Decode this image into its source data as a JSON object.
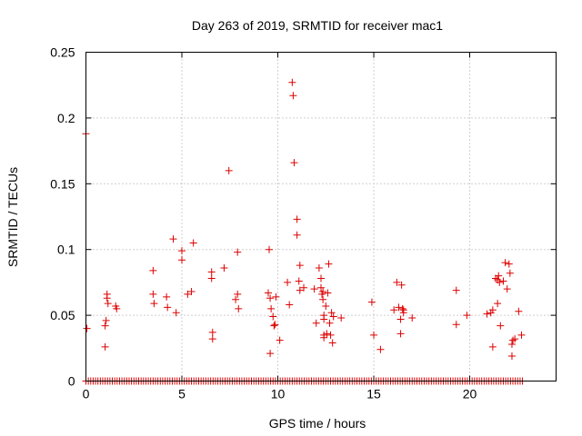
{
  "chart_data": {
    "type": "scatter",
    "title": "Day 263 of 2019, SRMTID for receiver mac1",
    "xlabel": "GPS time / hours",
    "ylabel": "SRMTID / TECUs",
    "xlim": [
      0,
      24.5
    ],
    "ylim": [
      0,
      0.25
    ],
    "x_ticks": [
      0,
      5,
      10,
      15,
      20
    ],
    "x_tick_labels": [
      "0",
      "5",
      "10",
      "15",
      "20"
    ],
    "y_ticks": [
      0,
      0.05,
      0.1,
      0.15,
      0.2,
      0.25
    ],
    "y_tick_labels": [
      "0",
      "0.05",
      "0.1",
      "0.15",
      "0.2",
      "0.25"
    ],
    "grid": true,
    "marker": "+",
    "color": "#dd0000",
    "series": [
      {
        "name": "SRMTID",
        "points": [
          [
            0.0,
            0.188
          ],
          [
            0.05,
            0.04
          ],
          [
            1.0,
            0.026
          ],
          [
            1.0,
            0.042
          ],
          [
            1.05,
            0.046
          ],
          [
            1.1,
            0.066
          ],
          [
            1.1,
            0.063
          ],
          [
            1.15,
            0.059
          ],
          [
            1.55,
            0.057
          ],
          [
            1.6,
            0.055
          ],
          [
            3.5,
            0.084
          ],
          [
            3.5,
            0.066
          ],
          [
            3.55,
            0.059
          ],
          [
            4.2,
            0.064
          ],
          [
            4.25,
            0.056
          ],
          [
            4.55,
            0.108
          ],
          [
            4.7,
            0.052
          ],
          [
            5.0,
            0.099
          ],
          [
            5.0,
            0.092
          ],
          [
            5.3,
            0.066
          ],
          [
            5.5,
            0.068
          ],
          [
            5.6,
            0.105
          ],
          [
            6.55,
            0.083
          ],
          [
            6.55,
            0.078
          ],
          [
            6.6,
            0.037
          ],
          [
            6.6,
            0.032
          ],
          [
            7.2,
            0.086
          ],
          [
            7.45,
            0.16
          ],
          [
            7.8,
            0.062
          ],
          [
            7.9,
            0.098
          ],
          [
            7.9,
            0.066
          ],
          [
            7.95,
            0.055
          ],
          [
            9.5,
            0.067
          ],
          [
            9.55,
            0.1
          ],
          [
            9.6,
            0.063
          ],
          [
            9.6,
            0.021
          ],
          [
            9.65,
            0.055
          ],
          [
            9.75,
            0.049
          ],
          [
            9.8,
            0.042
          ],
          [
            9.85,
            0.043
          ],
          [
            9.9,
            0.064
          ],
          [
            10.1,
            0.031
          ],
          [
            10.5,
            0.075
          ],
          [
            10.6,
            0.058
          ],
          [
            10.75,
            0.227
          ],
          [
            10.8,
            0.217
          ],
          [
            10.85,
            0.166
          ],
          [
            11.0,
            0.111
          ],
          [
            11.0,
            0.123
          ],
          [
            11.1,
            0.076
          ],
          [
            11.15,
            0.088
          ],
          [
            11.15,
            0.069
          ],
          [
            11.35,
            0.071
          ],
          [
            11.9,
            0.07
          ],
          [
            12.0,
            0.044
          ],
          [
            12.15,
            0.086
          ],
          [
            12.25,
            0.078
          ],
          [
            12.25,
            0.071
          ],
          [
            12.3,
            0.066
          ],
          [
            12.35,
            0.068
          ],
          [
            12.35,
            0.062
          ],
          [
            12.4,
            0.047
          ],
          [
            12.4,
            0.05
          ],
          [
            12.4,
            0.035
          ],
          [
            12.4,
            0.033
          ],
          [
            12.5,
            0.057
          ],
          [
            12.55,
            0.036
          ],
          [
            12.6,
            0.067
          ],
          [
            12.65,
            0.089
          ],
          [
            12.7,
            0.044
          ],
          [
            12.75,
            0.035
          ],
          [
            12.8,
            0.052
          ],
          [
            12.85,
            0.029
          ],
          [
            12.9,
            0.049
          ],
          [
            13.3,
            0.048
          ],
          [
            14.9,
            0.06
          ],
          [
            15.0,
            0.035
          ],
          [
            15.35,
            0.024
          ],
          [
            16.05,
            0.054
          ],
          [
            16.2,
            0.075
          ],
          [
            16.3,
            0.056
          ],
          [
            16.4,
            0.036
          ],
          [
            16.4,
            0.047
          ],
          [
            16.45,
            0.073
          ],
          [
            16.5,
            0.055
          ],
          [
            16.55,
            0.052
          ],
          [
            16.55,
            0.054
          ],
          [
            17.0,
            0.048
          ],
          [
            19.3,
            0.069
          ],
          [
            19.3,
            0.043
          ],
          [
            19.85,
            0.05
          ],
          [
            20.9,
            0.051
          ],
          [
            21.1,
            0.052
          ],
          [
            21.2,
            0.026
          ],
          [
            21.2,
            0.054
          ],
          [
            21.35,
            0.078
          ],
          [
            21.45,
            0.059
          ],
          [
            21.45,
            0.077
          ],
          [
            21.5,
            0.08
          ],
          [
            21.55,
            0.075
          ],
          [
            21.6,
            0.042
          ],
          [
            21.75,
            0.076
          ],
          [
            21.85,
            0.09
          ],
          [
            21.95,
            0.07
          ],
          [
            22.05,
            0.089
          ],
          [
            22.1,
            0.082
          ],
          [
            22.2,
            0.028
          ],
          [
            22.2,
            0.019
          ],
          [
            22.25,
            0.031
          ],
          [
            22.35,
            0.032
          ],
          [
            22.55,
            0.053
          ],
          [
            22.7,
            0.035
          ]
        ],
        "baseline": {
          "y": 0,
          "from": 0,
          "to": 22.8,
          "step": 0.125
        }
      }
    ]
  }
}
